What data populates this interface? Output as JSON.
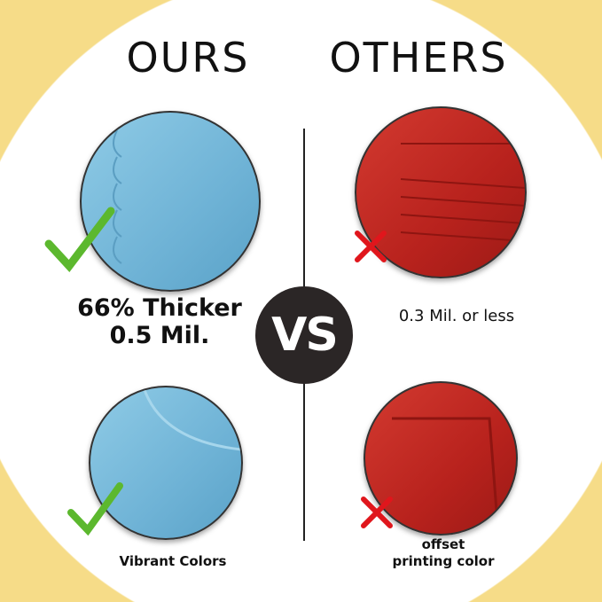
{
  "left": {
    "header": "OURS",
    "feature1": [
      "66% Thicker",
      "0.5 Mil."
    ],
    "feature2": "Vibrant Colors",
    "icon": "checkmark-icon"
  },
  "right": {
    "header": "OTHERS",
    "feature1": "0.3 Mil. or less",
    "feature2": [
      "offset",
      "printing color"
    ],
    "icon": "x-mark-icon"
  },
  "center": {
    "label": "VS"
  },
  "colors": {
    "background": "#f6dc88",
    "ours": "#7fbfe0",
    "others": "#c0261f",
    "check": "#5cb82e",
    "cross": "#e0161c"
  }
}
